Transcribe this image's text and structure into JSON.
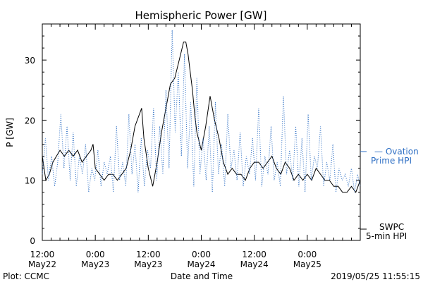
{
  "chart_data": {
    "type": "line",
    "title": "Hemispheric Power [GW]",
    "ylabel": "P [GW]",
    "xlabel": "Date and Time",
    "ylim": [
      0,
      36
    ],
    "yticks": [
      0,
      10,
      20,
      30
    ],
    "x_range_hours": [
      0,
      72
    ],
    "x_ticks": [
      {
        "hour": 0,
        "time": "12:00",
        "date": "May22"
      },
      {
        "hour": 12,
        "time": "0:00",
        "date": "May23"
      },
      {
        "hour": 24,
        "time": "12:00",
        "date": "May23"
      },
      {
        "hour": 36,
        "time": "0:00",
        "date": "May24"
      },
      {
        "hour": 48,
        "time": "12:00",
        "date": "May24"
      },
      {
        "hour": 60,
        "time": "0:00",
        "date": "May25"
      }
    ],
    "grid": false,
    "series": [
      {
        "name": "SWPC 5-min HPI",
        "style": "solid",
        "color": "#000000",
        "x": [
          0,
          0.8,
          1.6,
          2.4,
          3.2,
          4,
          5,
          6,
          7,
          8,
          9,
          10,
          11,
          11.5,
          12,
          13,
          14,
          15,
          16,
          17,
          18,
          19,
          20,
          21,
          22,
          22.5,
          23,
          24,
          25,
          26,
          27,
          28,
          29,
          30,
          31,
          32,
          32.5,
          33,
          33.5,
          34,
          34.5,
          35,
          36,
          37,
          38,
          39,
          40,
          41,
          42,
          43,
          44,
          45,
          46,
          47,
          48,
          49,
          50,
          51,
          52,
          53,
          54,
          55,
          56,
          57,
          58,
          59,
          60,
          61,
          62,
          63,
          64,
          65,
          66,
          67,
          68,
          69,
          70,
          71,
          72
        ],
        "y": [
          14,
          10,
          11,
          13,
          14,
          15,
          14,
          15,
          14,
          15,
          13,
          14,
          15,
          16,
          12,
          11,
          10,
          11,
          11,
          10,
          11,
          12,
          15,
          19,
          21,
          22,
          17,
          12,
          9,
          13,
          18,
          22,
          26,
          27,
          30,
          33,
          33,
          31,
          28,
          25,
          21,
          18,
          15,
          19,
          24,
          20,
          17,
          13,
          11,
          12,
          11,
          11,
          10,
          12,
          13,
          13,
          12,
          13,
          14,
          12,
          11,
          13,
          12,
          10,
          11,
          10,
          11,
          10,
          12,
          11,
          10,
          10,
          9,
          9,
          8,
          8,
          9,
          8,
          10
        ]
      },
      {
        "name": "Ovation Prime HPI",
        "style": "dotted",
        "color": "#2e6fc4",
        "x": [
          0,
          0.7,
          1.4,
          2.1,
          2.8,
          3.5,
          4.2,
          4.9,
          5.6,
          6.3,
          7,
          7.7,
          8.4,
          9.1,
          9.8,
          10.5,
          11.2,
          11.9,
          12.6,
          13.3,
          14,
          14.7,
          15.4,
          16.1,
          16.8,
          17.5,
          18.2,
          18.9,
          19.6,
          20.3,
          21,
          21.7,
          22.4,
          23.1,
          23.8,
          24.5,
          25.2,
          25.9,
          26.6,
          27.3,
          28,
          28.7,
          29.4,
          30.1,
          30.8,
          31.5,
          32.2,
          32.9,
          33.6,
          34.3,
          35,
          35.7,
          36.4,
          37.1,
          37.8,
          38.5,
          39.2,
          39.9,
          40.6,
          41.3,
          42,
          42.7,
          43.4,
          44.1,
          44.8,
          45.5,
          46.2,
          46.9,
          47.6,
          48.3,
          49,
          49.7,
          50.4,
          51.1,
          51.8,
          52.5,
          53.2,
          53.9,
          54.6,
          55.3,
          56,
          56.7,
          57.4,
          58.1,
          58.8,
          59.5,
          60.2,
          60.9,
          61.6,
          62.3,
          63,
          63.7,
          64.4,
          65.1,
          65.8,
          66.5,
          67.2,
          67.9,
          68.6,
          69.3,
          70,
          70.7,
          71.4,
          72
        ],
        "y": [
          11,
          17,
          10,
          14,
          9,
          13,
          21,
          12,
          19,
          10,
          18,
          9,
          14,
          11,
          16,
          8,
          12,
          10,
          15,
          9,
          13,
          11,
          14,
          8,
          19,
          10,
          13,
          9,
          21,
          11,
          16,
          8,
          17,
          9,
          15,
          12,
          22,
          10,
          19,
          11,
          25,
          12,
          35,
          18,
          28,
          14,
          31,
          12,
          23,
          9,
          27,
          11,
          17,
          10,
          19,
          8,
          23,
          11,
          16,
          9,
          21,
          12,
          15,
          10,
          18,
          9,
          14,
          11,
          17,
          10,
          22,
          9,
          14,
          11,
          19,
          10,
          13,
          9,
          24,
          11,
          15,
          10,
          19,
          9,
          17,
          8,
          21,
          10,
          14,
          12,
          19,
          9,
          13,
          10,
          16,
          8,
          12,
          10,
          11,
          9,
          12,
          8,
          11,
          9
        ]
      }
    ]
  },
  "legend": {
    "ovation_line1": "— Ovation",
    "ovation_line2": "Prime HPI",
    "swpc_line1": "SWPC",
    "swpc_line2": "5-min HPI"
  },
  "footer": {
    "left": "Plot: CCMC",
    "right": "2019/05/25 11:55:15"
  }
}
